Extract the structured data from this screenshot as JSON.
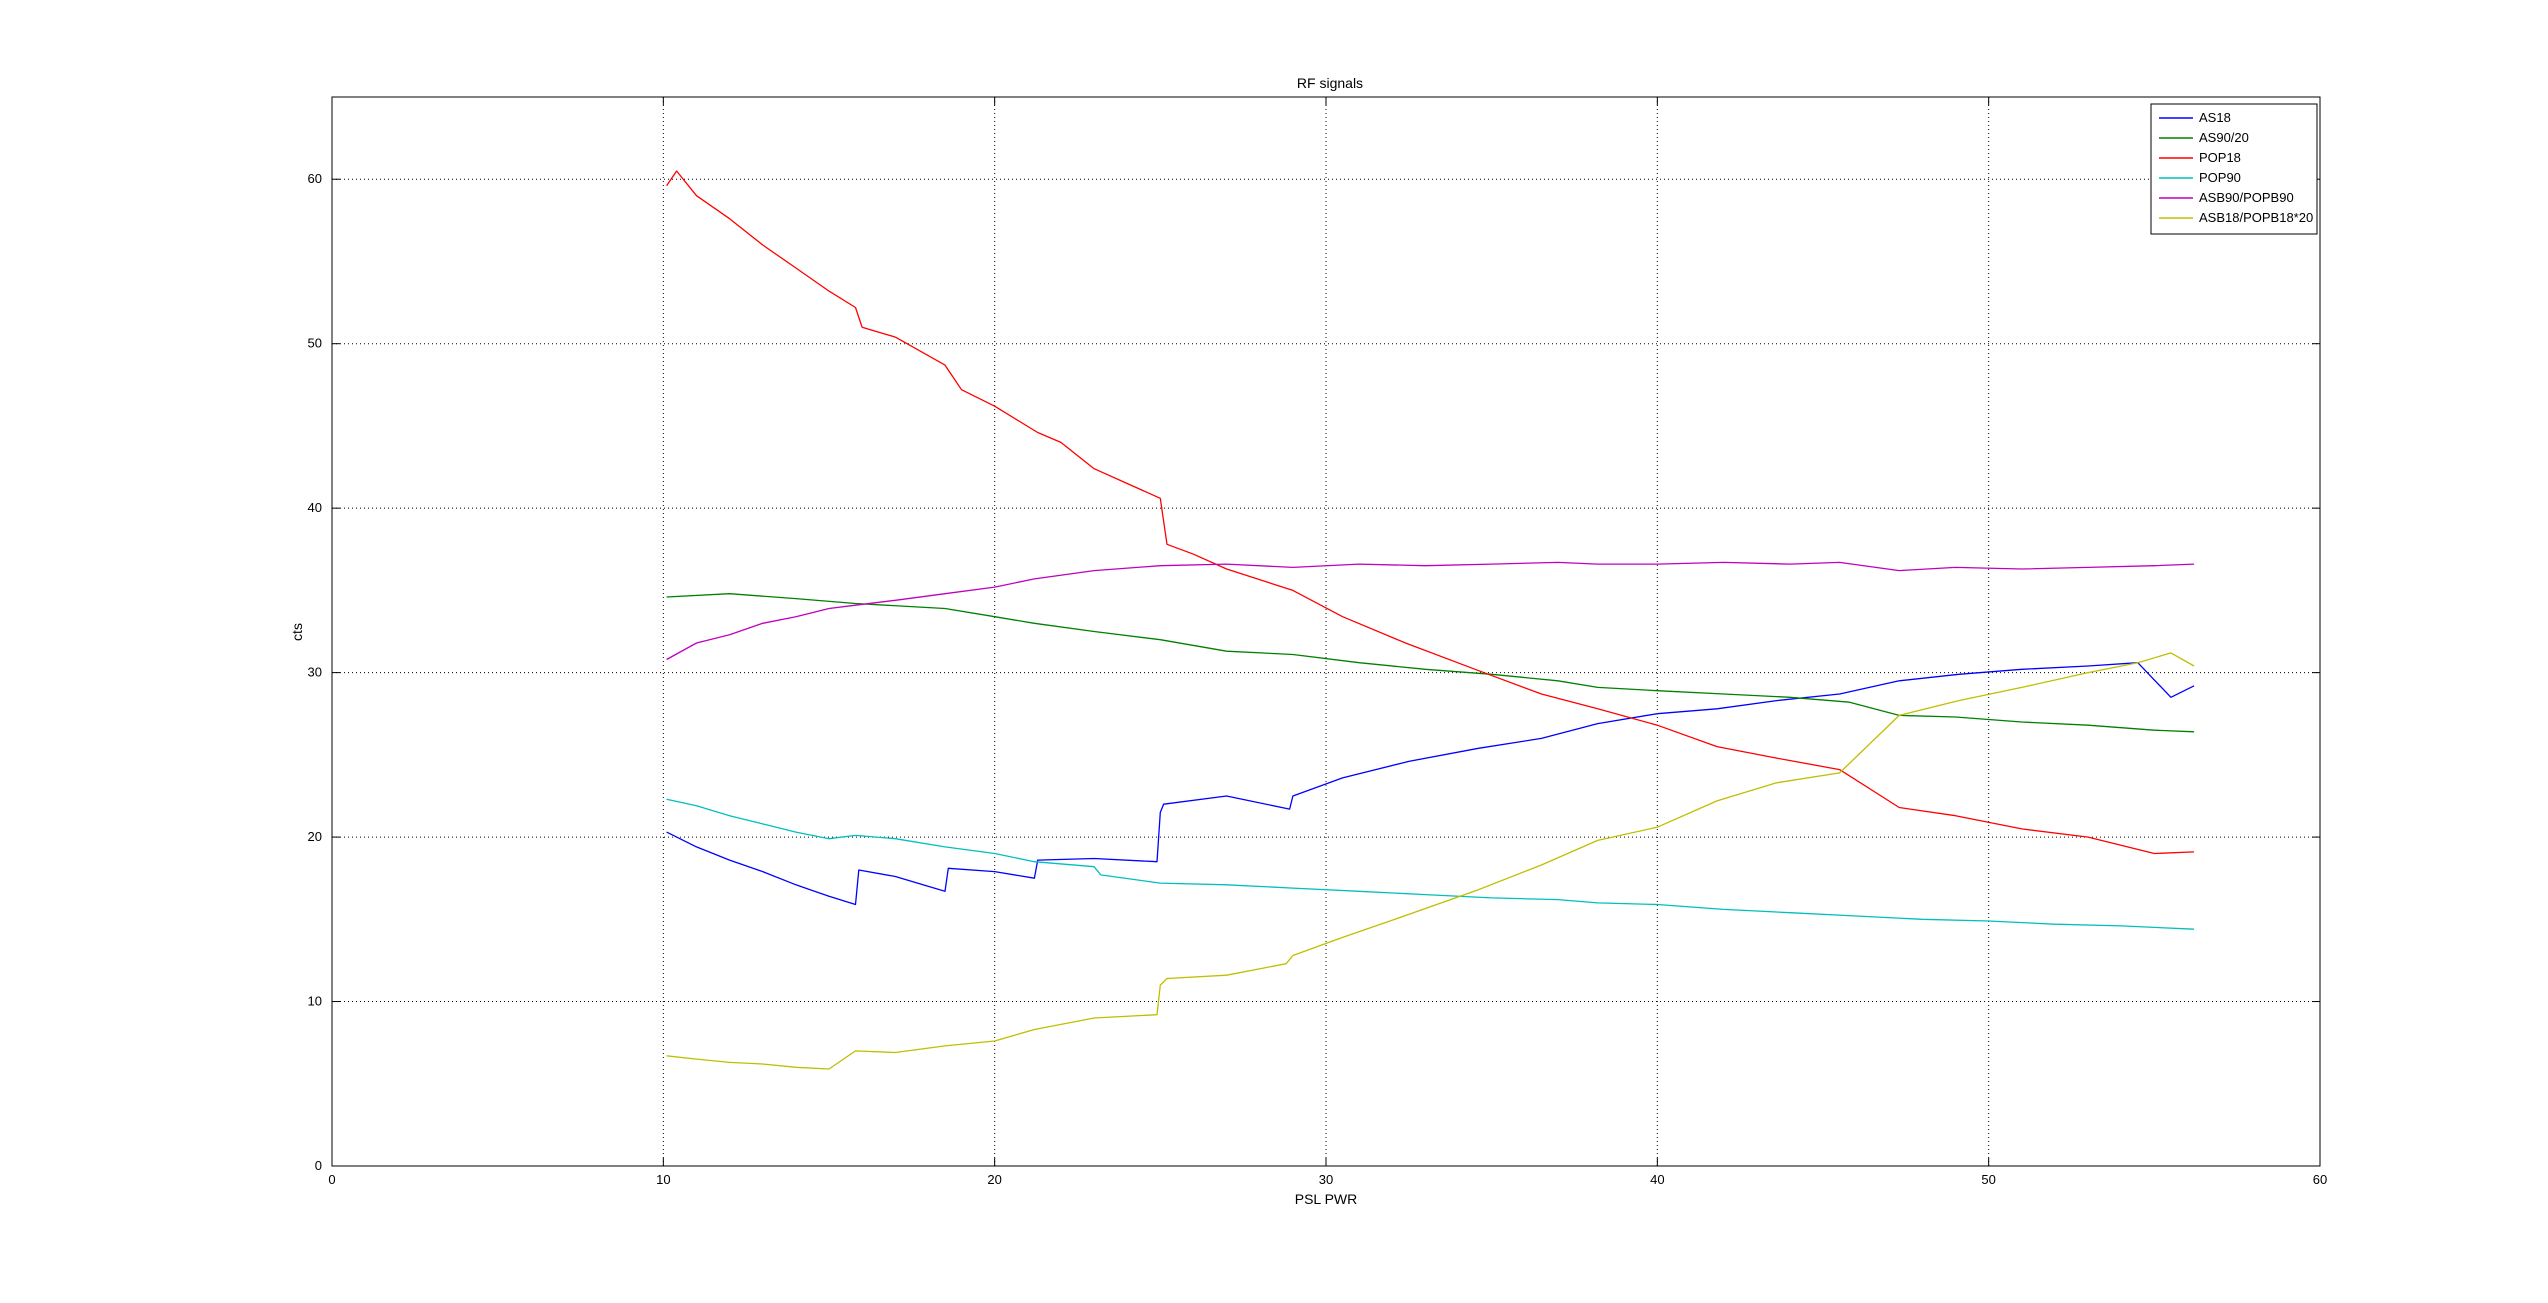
{
  "chart_data": {
    "type": "line",
    "title": "RF signals",
    "xlabel": "PSL PWR",
    "ylabel": "cts",
    "xlim": [
      0,
      60
    ],
    "ylim": [
      0,
      65
    ],
    "xticks": [
      "0",
      "10",
      "20",
      "30",
      "40",
      "50",
      "60"
    ],
    "yticks": [
      "0",
      "10",
      "20",
      "30",
      "40",
      "50",
      "60"
    ],
    "grid": true,
    "legend_position": "top-right",
    "series": [
      {
        "name": "AS18",
        "color": "#0000ff",
        "x": [
          10.1,
          11,
          12,
          13,
          14,
          15,
          15.8,
          15.9,
          17,
          18.5,
          18.6,
          20,
          21.2,
          21.3,
          23,
          24.9,
          25,
          25.1,
          27,
          28.9,
          29,
          30.5,
          32.5,
          34.6,
          36.5,
          38.2,
          40,
          41.8,
          43.6,
          45.5,
          47.3,
          49.1,
          51,
          53,
          54.5,
          55.5,
          56.2
        ],
        "y": [
          20.3,
          19.4,
          18.6,
          17.9,
          17.1,
          16.4,
          15.9,
          18.0,
          17.6,
          16.7,
          18.1,
          17.9,
          17.5,
          18.6,
          18.7,
          18.5,
          21.5,
          22.0,
          22.5,
          21.7,
          22.5,
          23.6,
          24.6,
          25.4,
          26.0,
          26.9,
          27.5,
          27.8,
          28.3,
          28.7,
          29.5,
          29.9,
          30.2,
          30.4,
          30.6,
          28.5,
          29.2
        ]
      },
      {
        "name": "AS90/20",
        "color": "#008000",
        "x": [
          10.1,
          12,
          14,
          15.8,
          18.5,
          20,
          21.2,
          23,
          25,
          27,
          29,
          31,
          33,
          35,
          37,
          38.2,
          40,
          42,
          44,
          45.8,
          47.3,
          49,
          51,
          53,
          55,
          56.2
        ],
        "y": [
          34.6,
          34.8,
          34.5,
          34.2,
          33.9,
          33.4,
          33.0,
          32.5,
          32.0,
          31.3,
          31.1,
          30.6,
          30.2,
          29.9,
          29.5,
          29.1,
          28.9,
          28.7,
          28.5,
          28.2,
          27.4,
          27.3,
          27.0,
          26.8,
          26.5,
          26.4
        ]
      },
      {
        "name": "POP18",
        "color": "#ff0000",
        "x": [
          10.1,
          10.4,
          11,
          12,
          13,
          14,
          15,
          15.8,
          16,
          17,
          18.5,
          19,
          20,
          21.3,
          22,
          23,
          24,
          25,
          25.2,
          26,
          27,
          29,
          30.5,
          32.4,
          34.5,
          36.5,
          38.2,
          40,
          41.8,
          43.6,
          45.5,
          47.3,
          49,
          51,
          53,
          55,
          56.2
        ],
        "y": [
          59.6,
          60.5,
          59.0,
          57.6,
          56.0,
          54.6,
          53.2,
          52.2,
          51.0,
          50.4,
          48.7,
          47.2,
          46.2,
          44.6,
          44.0,
          42.4,
          41.5,
          40.6,
          37.8,
          37.2,
          36.3,
          35.0,
          33.4,
          31.8,
          30.2,
          28.7,
          27.8,
          26.8,
          25.5,
          24.8,
          24.1,
          21.8,
          21.3,
          20.5,
          20.0,
          19.0,
          19.1
        ]
      },
      {
        "name": "POP90",
        "color": "#00bfbf",
        "x": [
          10.1,
          11,
          12,
          13,
          14,
          15,
          15.8,
          17,
          18.5,
          20,
          21.2,
          23,
          23.2,
          25,
          27,
          29,
          31,
          33,
          35,
          37,
          38.2,
          40,
          42,
          44,
          46,
          48,
          50,
          52,
          54,
          56.2
        ],
        "y": [
          22.3,
          21.9,
          21.3,
          20.8,
          20.3,
          19.9,
          20.1,
          19.9,
          19.4,
          19.0,
          18.5,
          18.2,
          17.7,
          17.2,
          17.1,
          16.9,
          16.7,
          16.5,
          16.3,
          16.2,
          16.0,
          15.9,
          15.6,
          15.4,
          15.2,
          15.0,
          14.9,
          14.7,
          14.6,
          14.4
        ]
      },
      {
        "name": "ASB90/POPB90",
        "color": "#bf00bf",
        "x": [
          10.1,
          11,
          12,
          13,
          14,
          15,
          15.8,
          17,
          18.5,
          20,
          21.2,
          23,
          25,
          27,
          29,
          31,
          33,
          35,
          37,
          38.2,
          40,
          42,
          44,
          45.5,
          47.3,
          49,
          51,
          53,
          55,
          56.2
        ],
        "y": [
          30.8,
          31.8,
          32.3,
          33.0,
          33.4,
          33.9,
          34.1,
          34.4,
          34.8,
          35.2,
          35.7,
          36.2,
          36.5,
          36.6,
          36.4,
          36.6,
          36.5,
          36.6,
          36.7,
          36.6,
          36.6,
          36.7,
          36.6,
          36.7,
          36.2,
          36.4,
          36.3,
          36.4,
          36.5,
          36.6
        ]
      },
      {
        "name": "ASB18/POPB18*20",
        "color": "#bfbf00",
        "x": [
          10.1,
          11,
          12,
          13,
          14,
          15,
          15.8,
          17,
          18.5,
          20,
          21.2,
          23,
          24.9,
          25,
          25.2,
          27,
          28.8,
          29,
          30.5,
          32.5,
          34.6,
          36.5,
          38.2,
          40,
          41.8,
          43.6,
          45.5,
          47.3,
          49.1,
          51,
          53,
          54.5,
          55.5,
          56.2
        ],
        "y": [
          6.7,
          6.5,
          6.3,
          6.2,
          6.0,
          5.9,
          7.0,
          6.9,
          7.3,
          7.6,
          8.3,
          9.0,
          9.2,
          11.0,
          11.4,
          11.6,
          12.3,
          12.8,
          13.9,
          15.3,
          16.8,
          18.3,
          19.8,
          20.6,
          22.2,
          23.3,
          23.9,
          27.4,
          28.3,
          29.1,
          30.0,
          30.6,
          31.2,
          30.4
        ]
      }
    ]
  }
}
